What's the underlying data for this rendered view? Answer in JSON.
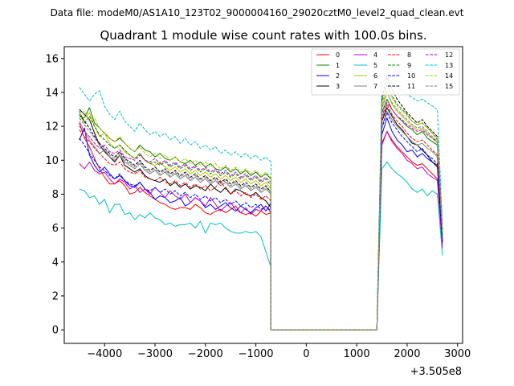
{
  "figure": {
    "suptitle": "Data file: modeM0/AS1A10_123T02_9000004160_29020cztM0_level2_quad_clean.evt"
  },
  "chart_data": {
    "type": "line",
    "title": "Quadrant 1 module wise count rates with 100.0s bins.",
    "xlabel": "",
    "ylabel": "",
    "offset_text": "+3.505e8",
    "xlim": [
      -4800,
      3100
    ],
    "ylim": [
      -0.8,
      16.7
    ],
    "xticks": [
      -4000,
      -3000,
      -2000,
      -1000,
      0,
      1000,
      2000,
      3000
    ],
    "xtick_labels": [
      "−4000",
      "−3000",
      "−2000",
      "−1000",
      "0",
      "1000",
      "2000",
      "3000"
    ],
    "yticks": [
      0,
      2,
      4,
      6,
      8,
      10,
      12,
      14,
      16
    ],
    "ytick_labels": [
      "0",
      "2",
      "4",
      "6",
      "8",
      "10",
      "12",
      "14",
      "16"
    ],
    "legend_position": "top-right",
    "segments": [
      {
        "start": -4500,
        "step": 100,
        "count": 39
      },
      {
        "start": -700,
        "step": 100,
        "count": 22
      },
      {
        "start": 1500,
        "step": 100,
        "count": 13
      }
    ],
    "series": [
      {
        "name": "0",
        "color": "#ff0000",
        "dash": "solid",
        "seg1": [
          12.2,
          11.3,
          10.8,
          10.1,
          9.5,
          9.0,
          8.6,
          8.6,
          8.8,
          8.5,
          8.0,
          8.1,
          8.4,
          8.1,
          7.9,
          7.7,
          7.5,
          7.4,
          7.2,
          7.1,
          7.2,
          7.2,
          7.1,
          7.4,
          7.2,
          6.9,
          6.8,
          7.0,
          7.1,
          6.9,
          7.1,
          7.3,
          6.9,
          6.8,
          6.9,
          6.7,
          7.0,
          6.8,
          6.9
        ],
        "seg3": [
          11.0,
          11.7,
          11.2,
          10.8,
          10.5,
          10.2,
          9.9,
          9.7,
          9.8,
          9.5,
          9.2,
          8.9,
          5.0
        ]
      },
      {
        "name": "1",
        "color": "#008000",
        "dash": "solid",
        "seg1": [
          12.6,
          12.5,
          13.1,
          12.2,
          11.9,
          11.6,
          11.3,
          11.1,
          11.3,
          11.0,
          10.7,
          10.5,
          10.9,
          10.6,
          10.5,
          10.2,
          10.4,
          10.1,
          10.0,
          10.2,
          9.9,
          9.8,
          10.0,
          9.7,
          9.9,
          9.6,
          9.8,
          9.5,
          9.4,
          9.6,
          9.3,
          9.5,
          9.2,
          9.4,
          9.1,
          9.3,
          9.0,
          9.2,
          8.9
        ],
        "seg3": [
          12.8,
          13.6,
          13.0,
          12.6,
          12.3,
          12.0,
          11.8,
          11.5,
          11.7,
          11.3,
          11.1,
          10.9,
          5.6
        ]
      },
      {
        "name": "2",
        "color": "#0000ff",
        "dash": "solid",
        "seg1": [
          11.2,
          11.9,
          10.3,
          9.7,
          9.3,
          9.6,
          9.2,
          8.9,
          9.1,
          8.8,
          8.5,
          8.4,
          8.7,
          8.3,
          8.1,
          7.7,
          7.9,
          7.8,
          7.5,
          7.6,
          7.8,
          7.3,
          7.5,
          7.8,
          7.6,
          7.2,
          7.4,
          7.1,
          7.3,
          7.5,
          7.2,
          7.0,
          7.3,
          7.1,
          6.9,
          7.2,
          7.4,
          7.0,
          7.5
        ],
        "seg3": [
          11.5,
          12.5,
          11.7,
          11.2,
          10.9,
          10.5,
          10.6,
          10.2,
          10.4,
          10.1,
          9.9,
          9.7,
          5.2
        ]
      },
      {
        "name": "3",
        "color": "#000000",
        "dash": "solid",
        "seg1": [
          13.0,
          12.7,
          12.4,
          11.6,
          10.9,
          10.5,
          10.2,
          9.9,
          10.3,
          9.7,
          9.5,
          9.3,
          9.5,
          9.1,
          8.9,
          8.8,
          8.7,
          8.9,
          8.5,
          8.7,
          8.4,
          8.6,
          8.3,
          8.5,
          8.4,
          8.2,
          8.6,
          8.3,
          8.1,
          8.4,
          8.0,
          8.3,
          8.2,
          8.0,
          7.9,
          8.1,
          7.8,
          7.6,
          7.2
        ],
        "seg3": [
          12.3,
          13.1,
          12.6,
          12.1,
          11.8,
          11.4,
          11.0,
          10.9,
          10.6,
          10.3,
          9.9,
          9.6,
          5.5
        ]
      },
      {
        "name": "4",
        "color": "#bf00bf",
        "dash": "solid",
        "seg1": [
          9.8,
          9.5,
          9.9,
          9.4,
          9.2,
          9.3,
          8.9,
          8.6,
          8.9,
          8.7,
          8.3,
          8.5,
          8.1,
          8.3,
          8.0,
          8.4,
          8.1,
          7.8,
          8.2,
          7.9,
          7.7,
          8.0,
          7.5,
          7.8,
          7.6,
          7.3,
          7.8,
          7.4,
          7.0,
          7.3,
          7.5,
          7.1,
          6.9,
          7.2,
          6.8,
          7.1,
          7.0,
          7.3,
          6.9
        ],
        "seg3": [
          10.9,
          11.7,
          11.1,
          10.7,
          10.4,
          10.0,
          9.8,
          9.5,
          9.6,
          9.2,
          9.0,
          8.8,
          4.8
        ]
      },
      {
        "name": "5",
        "color": "#00bfbf",
        "dash": "solid",
        "seg1": [
          8.3,
          8.2,
          7.8,
          7.9,
          7.4,
          7.7,
          6.9,
          7.4,
          7.4,
          6.8,
          6.9,
          6.5,
          6.8,
          6.6,
          6.9,
          6.6,
          6.5,
          6.2,
          6.3,
          6.1,
          6.2,
          6.2,
          6.3,
          6.0,
          6.4,
          5.7,
          6.3,
          6.2,
          6.3,
          6.0,
          5.8,
          5.7,
          5.7,
          5.8,
          5.7,
          5.8,
          5.5,
          4.6,
          3.7
        ],
        "seg3": [
          9.5,
          9.9,
          9.5,
          9.2,
          9.0,
          8.7,
          8.3,
          8.1,
          8.3,
          7.9,
          8.2,
          8.0,
          4.4
        ]
      },
      {
        "name": "6",
        "color": "#bfbf00",
        "dash": "solid",
        "seg1": [
          12.4,
          12.5,
          12.8,
          12.0,
          11.4,
          11.6,
          11.0,
          10.7,
          10.9,
          10.5,
          10.3,
          10.1,
          10.4,
          10.0,
          9.8,
          9.7,
          9.9,
          9.6,
          9.4,
          9.6,
          9.3,
          9.5,
          9.2,
          9.4,
          9.1,
          9.3,
          9.0,
          9.2,
          8.9,
          9.1,
          8.8,
          9.0,
          8.7,
          8.9,
          8.6,
          8.8,
          8.5,
          8.7,
          8.3
        ],
        "seg3": [
          13.1,
          14.1,
          13.3,
          12.9,
          12.6,
          12.3,
          12.0,
          11.8,
          11.9,
          11.6,
          11.3,
          11.0,
          5.7
        ]
      },
      {
        "name": "7",
        "color": "#808080",
        "dash": "solid",
        "seg1": [
          12.3,
          11.7,
          11.2,
          10.8,
          10.4,
          10.6,
          10.2,
          10.0,
          10.3,
          9.9,
          9.7,
          9.5,
          9.8,
          9.4,
          9.2,
          9.4,
          9.1,
          9.3,
          9.0,
          9.2,
          8.9,
          9.1,
          8.8,
          9.0,
          8.7,
          8.9,
          8.6,
          8.8,
          8.5,
          8.7,
          8.4,
          8.6,
          8.3,
          8.5,
          8.2,
          8.4,
          8.1,
          8.3,
          8.0
        ],
        "seg3": [
          12.0,
          12.9,
          12.4,
          12.0,
          11.7,
          11.4,
          11.1,
          10.9,
          11.0,
          10.7,
          10.5,
          10.2,
          5.4
        ]
      },
      {
        "name": "8",
        "color": "#ff0000",
        "dash": "dashed",
        "seg1": [
          11.8,
          11.4,
          11.1,
          10.7,
          10.4,
          10.1,
          9.8,
          9.7,
          9.9,
          9.5,
          9.3,
          9.2,
          9.4,
          9.0,
          8.9,
          8.8,
          9.0,
          8.7,
          8.6,
          8.8,
          8.5,
          8.7,
          8.4,
          8.6,
          8.3,
          8.5,
          8.2,
          8.4,
          8.8,
          8.3,
          8.0,
          8.2,
          7.9,
          8.1,
          7.8,
          8.0,
          7.7,
          7.9,
          7.6
        ],
        "seg3": [
          12.4,
          13.3,
          12.7,
          12.3,
          12.0,
          11.6,
          11.3,
          11.1,
          11.2,
          10.9,
          10.6,
          10.3,
          5.3
        ]
      },
      {
        "name": "9",
        "color": "#008000",
        "dash": "dashed",
        "seg1": [
          12.9,
          12.2,
          12.6,
          12.0,
          11.5,
          11.2,
          10.9,
          10.7,
          10.9,
          10.6,
          10.3,
          10.1,
          10.4,
          10.0,
          9.8,
          9.9,
          9.7,
          9.9,
          9.6,
          9.8,
          9.5,
          9.7,
          9.4,
          9.6,
          9.3,
          9.5,
          9.2,
          9.4,
          9.1,
          9.3,
          9.0,
          9.2,
          8.9,
          9.1,
          8.8,
          9.0,
          8.7,
          8.9,
          8.5
        ],
        "seg3": [
          13.5,
          14.5,
          13.8,
          13.3,
          13.0,
          12.7,
          12.3,
          12.1,
          12.2,
          11.9,
          11.6,
          11.2,
          5.8
        ]
      },
      {
        "name": "10",
        "color": "#0000ff",
        "dash": "dashed",
        "seg1": [
          11.3,
          10.9,
          10.4,
          10.0,
          9.6,
          9.4,
          9.1,
          8.9,
          9.2,
          8.8,
          8.6,
          8.5,
          8.7,
          8.3,
          8.2,
          8.4,
          8.1,
          8.3,
          8.0,
          8.2,
          7.9,
          8.1,
          7.8,
          8.0,
          7.7,
          7.9,
          7.6,
          7.8,
          7.5,
          7.7,
          7.4,
          7.6,
          7.3,
          7.5,
          7.2,
          7.4,
          7.1,
          7.3,
          7.0
        ],
        "seg3": [
          11.9,
          12.8,
          12.2,
          11.8,
          11.4,
          11.1,
          10.8,
          10.5,
          10.7,
          10.3,
          10.1,
          9.8,
          5.1
        ]
      },
      {
        "name": "11",
        "color": "#000000",
        "dash": "dashed",
        "seg1": [
          12.7,
          12.3,
          11.9,
          11.4,
          11.0,
          10.7,
          10.4,
          10.2,
          10.5,
          10.1,
          9.9,
          9.7,
          10.0,
          9.6,
          9.4,
          9.6,
          9.3,
          9.5,
          9.2,
          9.4,
          9.1,
          9.3,
          9.0,
          9.2,
          8.9,
          9.1,
          8.8,
          9.0,
          8.7,
          8.9,
          8.6,
          8.8,
          8.5,
          8.7,
          8.4,
          8.6,
          8.3,
          8.5,
          8.1
        ],
        "seg3": [
          13.7,
          14.9,
          14.2,
          13.6,
          13.2,
          12.8,
          12.5,
          12.2,
          12.4,
          12.0,
          11.7,
          11.4,
          5.9
        ]
      },
      {
        "name": "12",
        "color": "#bf00bf",
        "dash": "dashed",
        "seg1": [
          12.0,
          11.7,
          11.4,
          11.0,
          10.7,
          10.9,
          10.5,
          10.4,
          10.6,
          10.2,
          10.1,
          10.0,
          10.3,
          10.0,
          9.9,
          10.1,
          9.8,
          10.0,
          9.7,
          9.9,
          9.6,
          9.8,
          9.5,
          9.7,
          9.4,
          9.6,
          9.3,
          9.5,
          9.2,
          9.4,
          9.1,
          9.3,
          9.0,
          9.2,
          8.9,
          9.1,
          8.8,
          9.0,
          8.7
        ],
        "seg3": [
          12.6,
          13.4,
          13.0,
          12.6,
          12.4,
          12.1,
          11.9,
          11.7,
          11.8,
          11.5,
          11.3,
          11.1,
          5.6
        ]
      },
      {
        "name": "13",
        "color": "#00bfbf",
        "dash": "dashed",
        "seg1": [
          14.3,
          13.9,
          13.5,
          13.9,
          14.1,
          13.2,
          12.7,
          12.4,
          12.9,
          12.3,
          12.0,
          11.7,
          12.2,
          11.8,
          11.5,
          11.7,
          11.4,
          11.6,
          11.2,
          11.4,
          11.0,
          11.3,
          10.9,
          11.1,
          10.7,
          10.9,
          10.6,
          10.8,
          10.4,
          10.6,
          10.3,
          10.5,
          10.2,
          10.4,
          10.1,
          10.3,
          10.0,
          10.2,
          9.9
        ],
        "seg3": [
          14.5,
          15.0,
          14.6,
          14.3,
          14.1,
          13.9,
          13.7,
          13.5,
          13.6,
          13.4,
          13.2,
          13.0,
          6.1
        ]
      },
      {
        "name": "14",
        "color": "#bfbf00",
        "dash": "dashed",
        "seg1": [
          12.6,
          12.9,
          12.3,
          12.5,
          11.9,
          11.6,
          11.3,
          11.1,
          11.4,
          11.0,
          10.7,
          10.5,
          10.8,
          10.4,
          10.2,
          10.4,
          10.1,
          10.3,
          10.0,
          10.2,
          9.9,
          10.1,
          9.8,
          10.0,
          9.7,
          9.9,
          9.6,
          9.8,
          9.5,
          9.7,
          9.4,
          9.6,
          9.3,
          9.5,
          9.2,
          9.4,
          9.1,
          9.3,
          9.0
        ],
        "seg3": [
          13.3,
          14.3,
          13.7,
          13.2,
          12.9,
          12.6,
          12.3,
          12.1,
          12.2,
          11.9,
          11.6,
          11.3,
          5.7
        ]
      },
      {
        "name": "15",
        "color": "#808080",
        "dash": "dashed",
        "seg1": [
          12.5,
          12.1,
          11.7,
          11.3,
          10.9,
          10.6,
          10.3,
          10.1,
          10.4,
          10.0,
          9.8,
          9.6,
          9.9,
          9.5,
          9.3,
          9.5,
          9.2,
          9.4,
          9.1,
          9.3,
          9.0,
          9.2,
          8.9,
          9.1,
          8.8,
          9.0,
          8.7,
          8.9,
          8.6,
          8.8,
          8.5,
          8.7,
          8.4,
          8.6,
          8.3,
          8.5,
          8.2,
          8.4,
          8.1
        ],
        "seg3": [
          13.0,
          14.0,
          13.4,
          13.0,
          12.7,
          12.4,
          12.1,
          11.9,
          12.0,
          11.7,
          11.4,
          11.1,
          5.5
        ]
      }
    ]
  }
}
